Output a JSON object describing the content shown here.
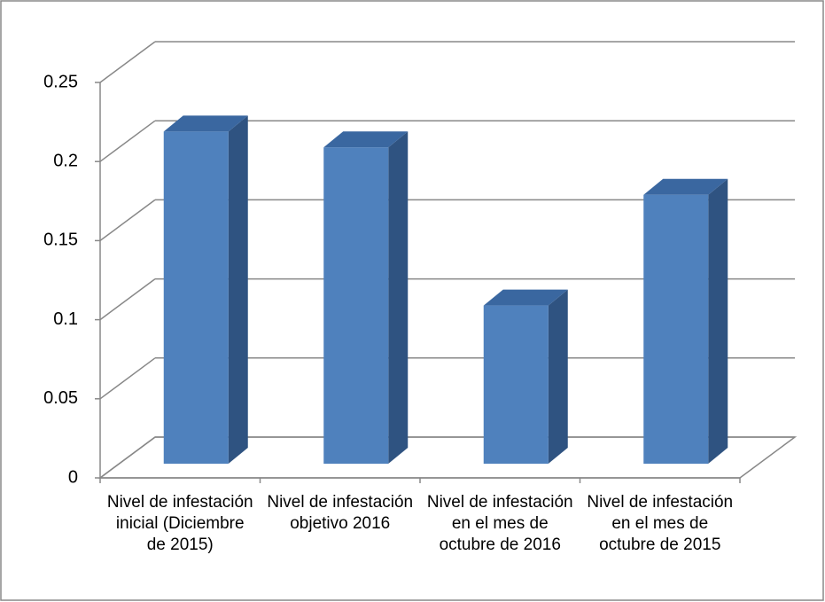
{
  "chart_data": {
    "type": "bar3d",
    "categories": [
      "Nivel de infestación inicial (Diciembre de 2015)",
      "Nivel de infestación objetivo 2016",
      "Nivel de infestación en el mes de octubre de 2016",
      "Nivel de infestación en el mes de octubre de 2015"
    ],
    "values": [
      0.21,
      0.2,
      0.1,
      0.17
    ],
    "color": "#4f81bd",
    "ylim": [
      0,
      0.25
    ],
    "yticks": [
      0,
      0.05,
      0.1,
      0.15,
      0.2,
      0.25
    ],
    "grid": true
  }
}
